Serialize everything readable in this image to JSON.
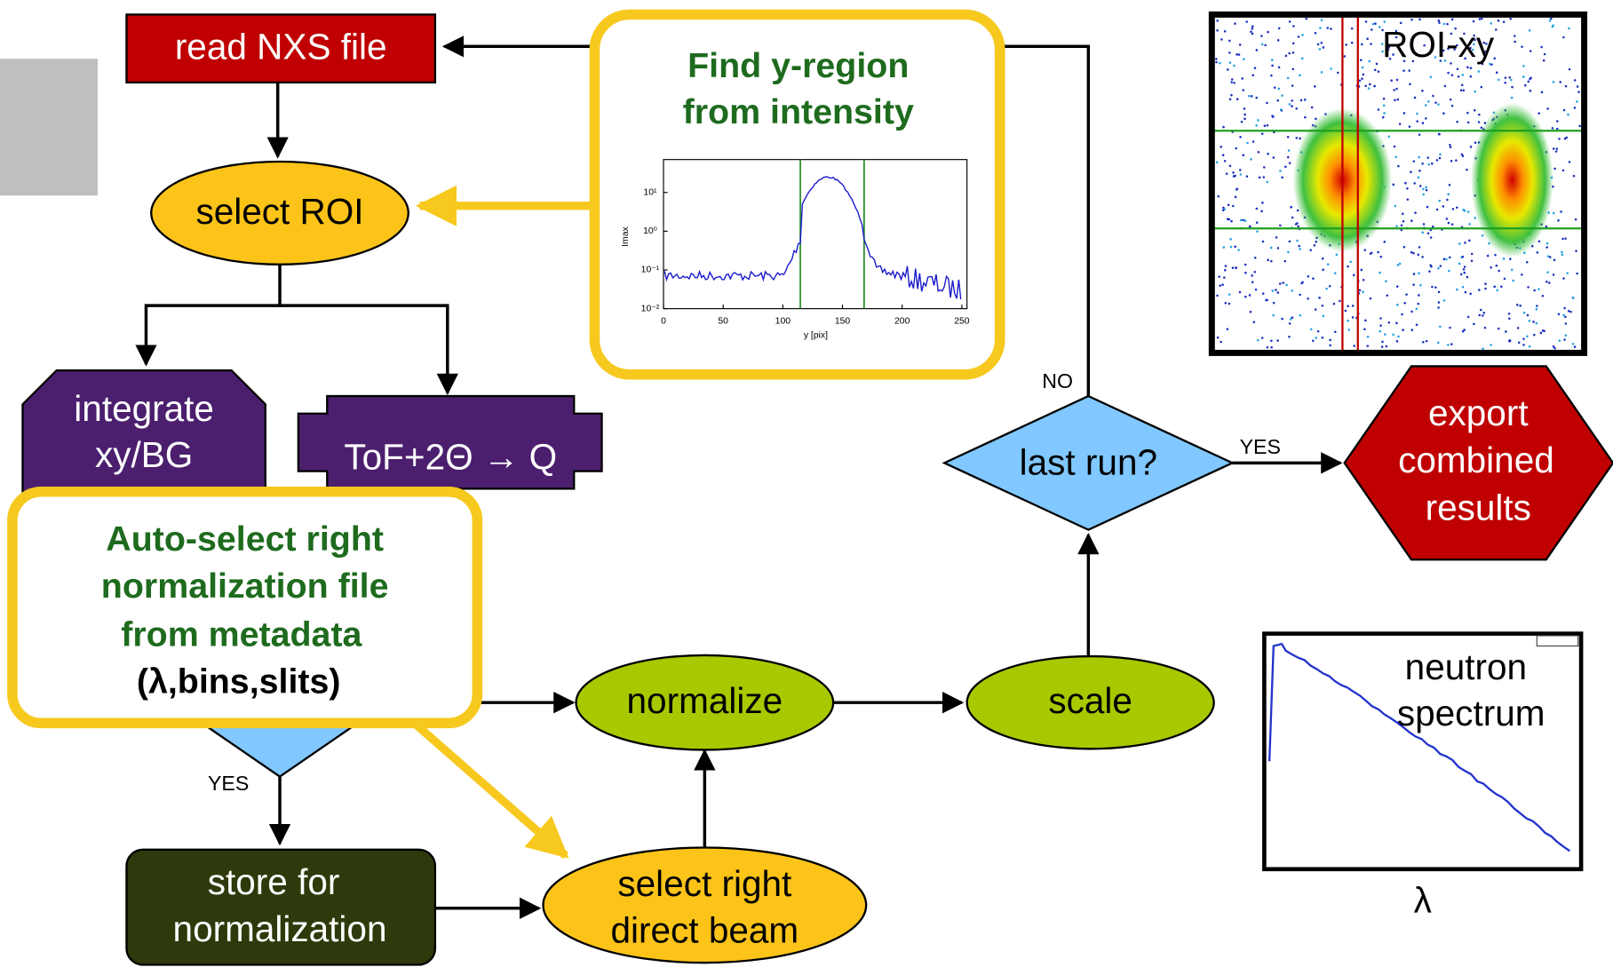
{
  "nodes": {
    "read": "read NXS file",
    "roi": "select ROI",
    "integrate": [
      "integrate",
      "xy/BG"
    ],
    "tof": "ToF+2Θ → Q",
    "last_run": "last run?",
    "export": [
      "export",
      "combined",
      "results"
    ],
    "normalize": "normalize",
    "scale": "scale",
    "store": [
      "store for",
      "normalization"
    ],
    "direct_beam": [
      "select right",
      "direct beam"
    ]
  },
  "edge_labels": {
    "no": "NO",
    "yes_export": "YES",
    "yes_store": "YES"
  },
  "callouts": {
    "y_region": {
      "title": [
        "Find y-region",
        "from intensity"
      ],
      "plot": {
        "y_label": "Imax",
        "x_label": "y [pix]",
        "y_ticks": [
          "10¹",
          "10⁰",
          "10⁻¹",
          "10⁻²"
        ],
        "x_ticks": [
          "0",
          "50",
          "100",
          "150",
          "200",
          "250"
        ]
      }
    },
    "auto_select": {
      "lines": [
        "Auto-select right",
        "normalization file",
        " from metadata"
      ],
      "detail": "(λ,bins,slits)"
    }
  },
  "panels": {
    "roi_xy": "ROI-xy",
    "spectrum": {
      "title": [
        "neutron",
        "spectrum"
      ],
      "x_label": "λ"
    }
  }
}
